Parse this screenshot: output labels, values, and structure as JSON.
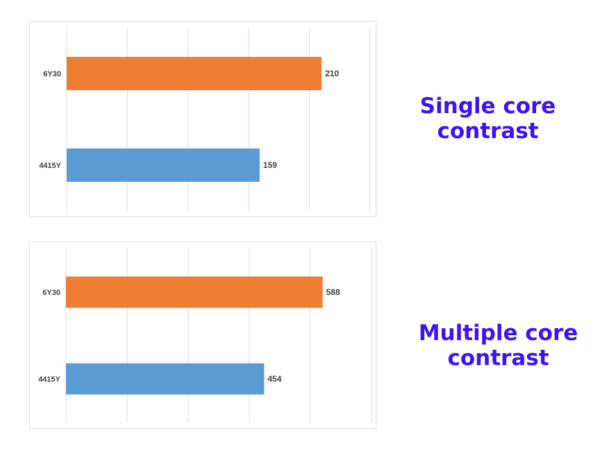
{
  "chart_data": [
    {
      "type": "bar",
      "orientation": "horizontal",
      "categories": [
        "6Y30",
        "4415Y"
      ],
      "values": [
        210,
        159
      ],
      "colors": [
        "#ed7d31",
        "#5b9bd5"
      ],
      "xlim": [
        0,
        250
      ],
      "grid": true,
      "caption": [
        "Single core",
        "contrast"
      ]
    },
    {
      "type": "bar",
      "orientation": "horizontal",
      "categories": [
        "6Y30",
        "4415Y"
      ],
      "values": [
        588,
        454
      ],
      "colors": [
        "#ed7d31",
        "#5b9bd5"
      ],
      "xlim": [
        0,
        700
      ],
      "grid": true,
      "caption": [
        "Multiple core",
        "contrast"
      ]
    }
  ]
}
